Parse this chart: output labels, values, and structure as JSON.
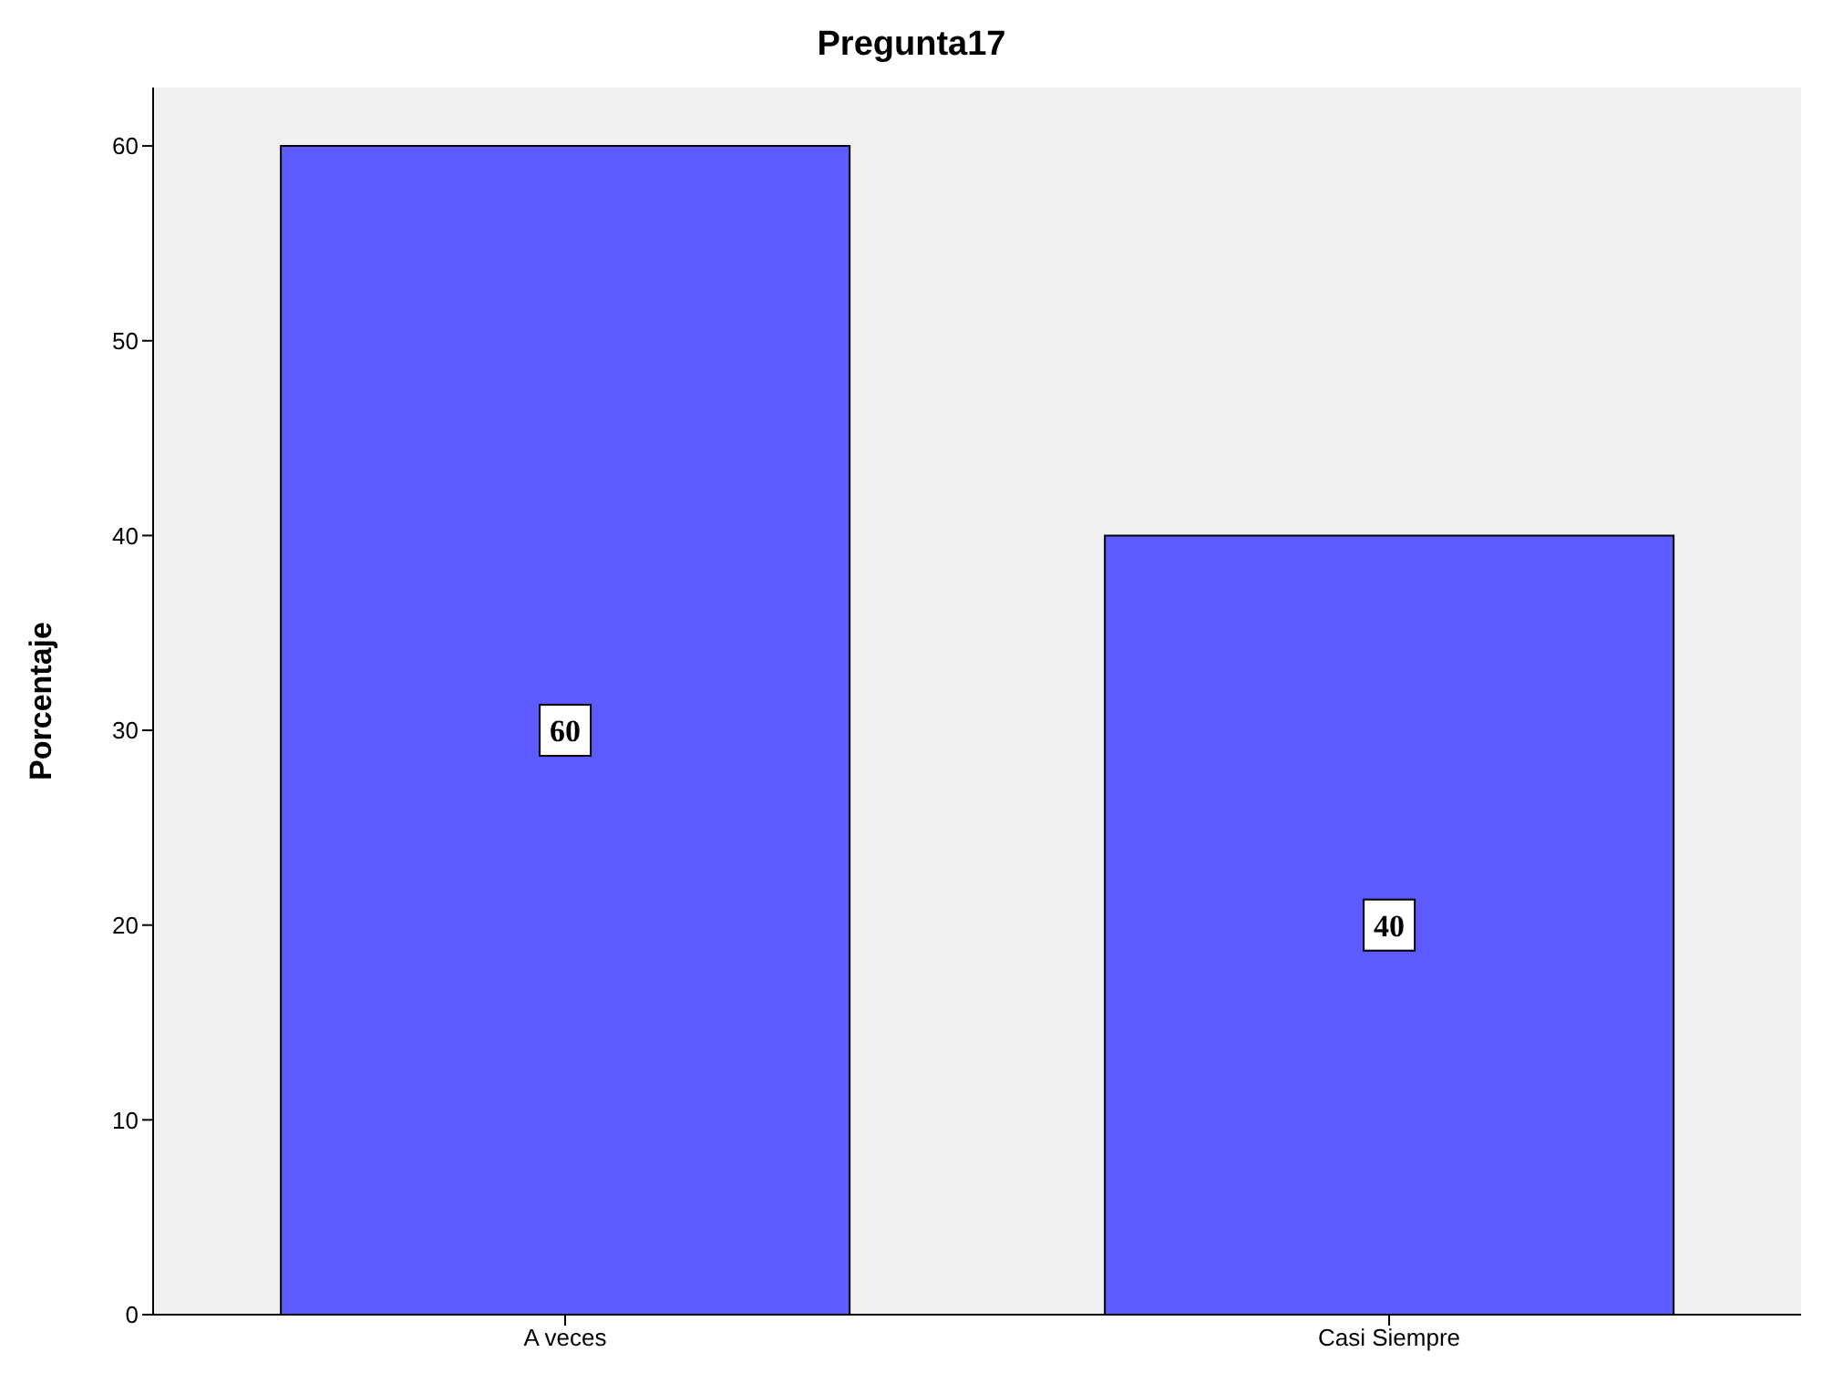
{
  "chart_data": {
    "type": "bar",
    "title": "Pregunta17",
    "ylabel": "Porcentaje",
    "categories": [
      "A veces",
      "Casi Siempre"
    ],
    "values": [
      60,
      40
    ],
    "color": "#5b5bff",
    "ylim": [
      0,
      63
    ],
    "yticks": [
      0,
      10,
      20,
      30,
      40,
      50,
      60
    ],
    "grid": false,
    "data_labels": true
  }
}
